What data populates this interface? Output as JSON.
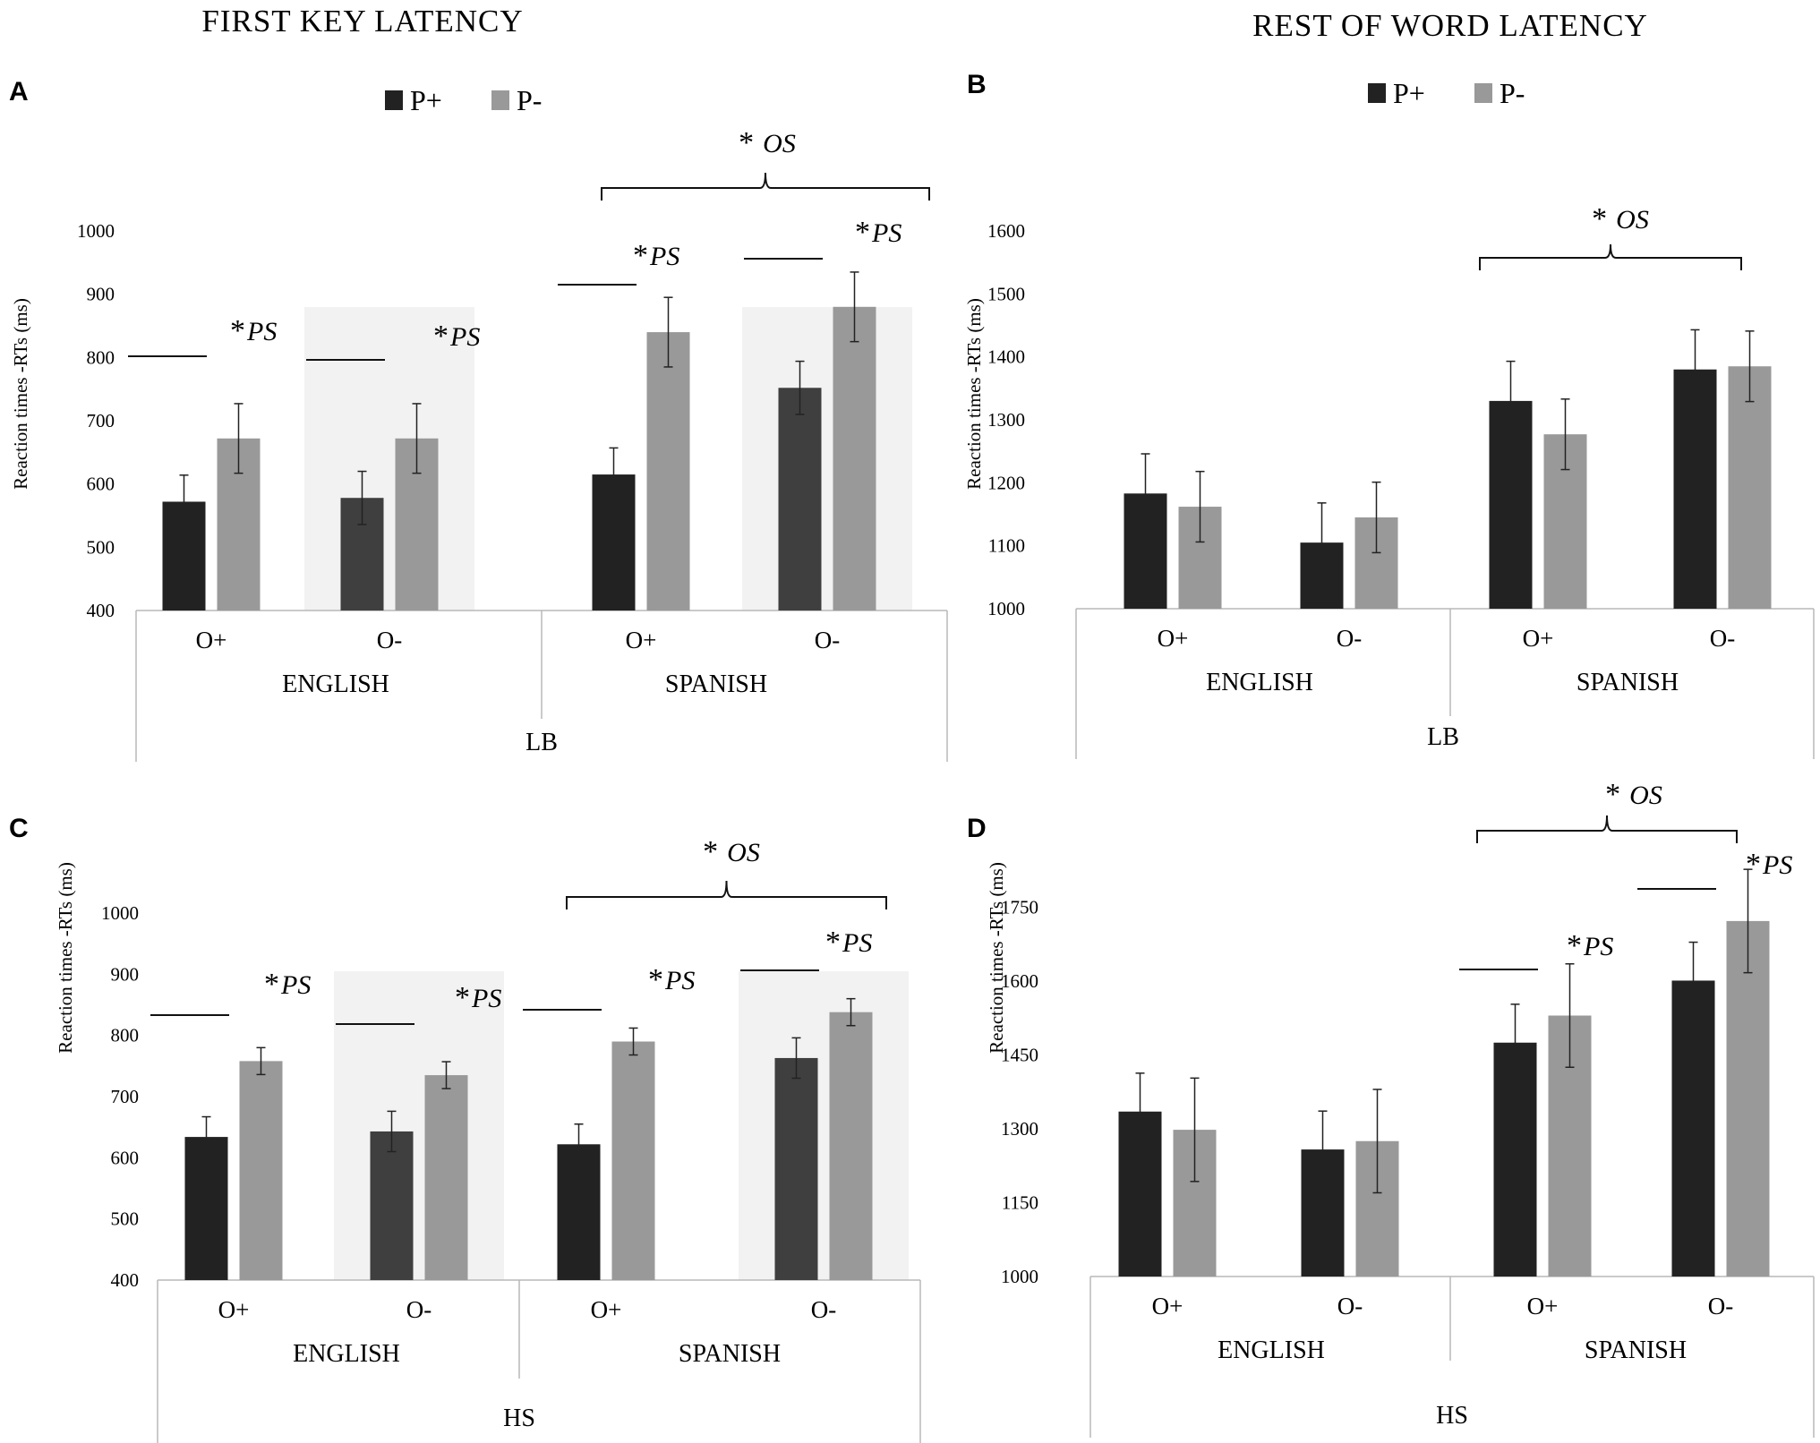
{
  "column_titles": [
    "FIRST KEY LATENCY",
    "REST OF WORD LATENCY"
  ],
  "legend": [
    {
      "name": "P+",
      "color": "#222222"
    },
    {
      "name": "P-",
      "color": "#999999"
    }
  ],
  "colors": {
    "p_plus": "#222222",
    "p_plus_alt": "#3f3f3f",
    "p_minus": "#999999",
    "shade": "#f2f2f2",
    "frame": "#b8b8b8"
  },
  "chart_data": [
    {
      "panel": "A",
      "type": "bar",
      "column": "FIRST KEY LATENCY",
      "ylabel": "Reaction times -RTs (ms)",
      "ylim": [
        400,
        1000
      ],
      "yticks": [
        400,
        500,
        600,
        700,
        800,
        900,
        1000
      ],
      "group": "LB",
      "languages": [
        "ENGLISH",
        "SPANISH"
      ],
      "categories": [
        "O+",
        "O-",
        "O+",
        "O-"
      ],
      "series": [
        {
          "name": "P+",
          "values": [
            572,
            578,
            615,
            752
          ],
          "errors": [
            42,
            42,
            42,
            42
          ]
        },
        {
          "name": "P-",
          "values": [
            672,
            672,
            840,
            880
          ],
          "errors": [
            55,
            55,
            55,
            55
          ]
        }
      ],
      "annotations": [
        {
          "star": "*",
          "label": "PS",
          "kind": "bar",
          "category": 0
        },
        {
          "star": "*",
          "label": "PS",
          "kind": "bar",
          "category": 1
        },
        {
          "star": "*",
          "label": "PS",
          "kind": "bar",
          "category": 2
        },
        {
          "star": "*",
          "label": "PS",
          "kind": "bar",
          "category": 3
        },
        {
          "star": "*",
          "label": "OS",
          "kind": "brace",
          "categories": [
            2,
            3
          ]
        }
      ]
    },
    {
      "panel": "B",
      "type": "bar",
      "column": "REST OF WORD LATENCY",
      "ylabel": "Reaction times -RTs (ms)",
      "ylim": [
        1000,
        1600
      ],
      "yticks": [
        1000,
        1100,
        1200,
        1300,
        1400,
        1500,
        1600
      ],
      "group": "LB",
      "languages": [
        "ENGLISH",
        "SPANISH"
      ],
      "categories": [
        "O+",
        "O-",
        "O+",
        "O-"
      ],
      "series": [
        {
          "name": "P+",
          "values": [
            1183,
            1105,
            1330,
            1380
          ],
          "errors": [
            63,
            63,
            63,
            63
          ]
        },
        {
          "name": "P-",
          "values": [
            1162,
            1145,
            1277,
            1385
          ],
          "errors": [
            56,
            56,
            56,
            56
          ]
        }
      ],
      "annotations": [
        {
          "star": "*",
          "label": "OS",
          "kind": "brace",
          "categories": [
            2,
            3
          ]
        }
      ]
    },
    {
      "panel": "C",
      "type": "bar",
      "column": "FIRST KEY LATENCY",
      "ylabel": "Reaction times -RTs (ms)",
      "ylim": [
        400,
        1000
      ],
      "yticks": [
        400,
        500,
        600,
        700,
        800,
        900,
        1000
      ],
      "group": "HS",
      "languages": [
        "ENGLISH",
        "SPANISH"
      ],
      "categories": [
        "O+",
        "O-",
        "O+",
        "O-"
      ],
      "series": [
        {
          "name": "P+",
          "values": [
            634,
            643,
            622,
            763
          ],
          "errors": [
            33,
            33,
            33,
            33
          ]
        },
        {
          "name": "P-",
          "values": [
            758,
            735,
            790,
            838
          ],
          "errors": [
            22,
            22,
            22,
            22
          ]
        }
      ],
      "annotations": [
        {
          "star": "*",
          "label": "PS",
          "kind": "bar",
          "category": 0
        },
        {
          "star": "*",
          "label": "PS",
          "kind": "bar",
          "category": 1
        },
        {
          "star": "*",
          "label": "PS",
          "kind": "bar",
          "category": 2
        },
        {
          "star": "*",
          "label": "PS",
          "kind": "bar",
          "category": 3
        },
        {
          "star": "*",
          "label": "OS",
          "kind": "brace",
          "categories": [
            2,
            3
          ]
        }
      ]
    },
    {
      "panel": "D",
      "type": "bar",
      "column": "REST OF WORD LATENCY",
      "ylabel": "Reaction times -RTs (ms)",
      "ylim": [
        1000,
        1800
      ],
      "yticks": [
        1000,
        1150,
        1300,
        1450,
        1600,
        1750
      ],
      "group": "HS",
      "languages": [
        "ENGLISH",
        "SPANISH"
      ],
      "categories": [
        "O+",
        "O-",
        "O+",
        "O-"
      ],
      "series": [
        {
          "name": "P+",
          "values": [
            1335,
            1258,
            1475,
            1601
          ],
          "errors": [
            78,
            78,
            78,
            78
          ]
        },
        {
          "name": "P-",
          "values": [
            1298,
            1275,
            1530,
            1722
          ],
          "errors": [
            105,
            105,
            105,
            105
          ]
        }
      ],
      "annotations": [
        {
          "star": "*",
          "label": "PS",
          "kind": "bar",
          "category": 2
        },
        {
          "star": "*",
          "label": "PS",
          "kind": "bar",
          "category": 3
        },
        {
          "star": "*",
          "label": "OS",
          "kind": "brace",
          "categories": [
            2,
            3
          ]
        }
      ]
    }
  ]
}
